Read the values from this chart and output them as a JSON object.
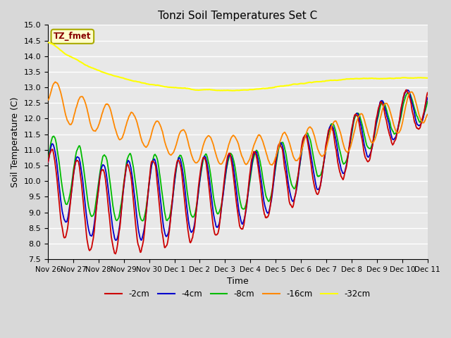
{
  "title": "Tonzi Soil Temperatures Set C",
  "xlabel": "Time",
  "ylabel": "Soil Temperature (C)",
  "ylim": [
    7.5,
    15.0
  ],
  "fig_bg_color": "#d8d8d8",
  "plot_bg_color": "#e8e8e8",
  "annotation_text": "TZ_fmet",
  "annotation_bg": "#ffffcc",
  "annotation_border": "#aaaa00",
  "annotation_text_color": "#880000",
  "legend_entries": [
    "-2cm",
    "-4cm",
    "-8cm",
    "-16cm",
    "-32cm"
  ],
  "line_colors": [
    "#cc0000",
    "#0000cc",
    "#00bb00",
    "#ff8800",
    "#ffff00"
  ],
  "line_widths": [
    1.3,
    1.3,
    1.3,
    1.3,
    1.5
  ],
  "tick_labels": [
    "Nov 26",
    "Nov 27",
    "Nov 28",
    "Nov 29",
    "Nov 30",
    "Dec 1",
    "Dec 2",
    "Dec 3",
    "Dec 4",
    "Dec 5",
    "Dec 6",
    "Dec 7",
    "Dec 8",
    "Dec 9",
    "Dec 10",
    "Dec 11"
  ],
  "yticks": [
    7.5,
    8.0,
    8.5,
    9.0,
    9.5,
    10.0,
    10.5,
    11.0,
    11.5,
    12.0,
    12.5,
    13.0,
    13.5,
    14.0,
    14.5,
    15.0
  ]
}
